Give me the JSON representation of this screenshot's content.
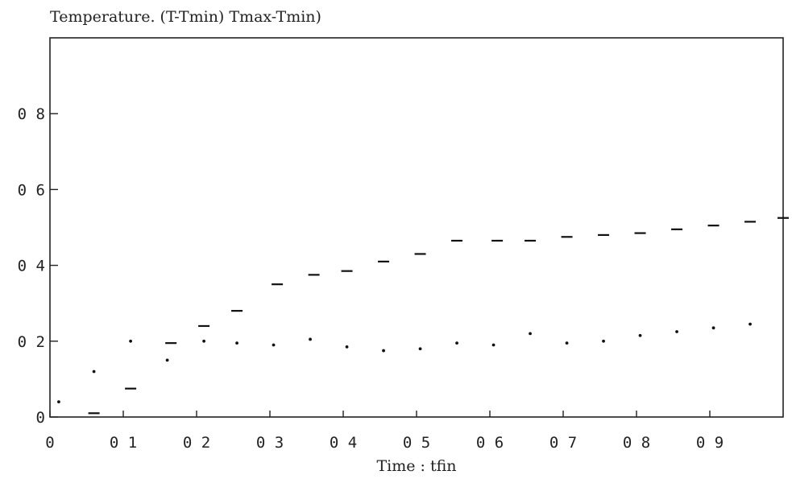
{
  "chart_data": {
    "type": "scatter",
    "title": "Temperature. (T-Tmin) Tmax-Tmin)",
    "xlabel": "Time : tfin",
    "ylabel": "",
    "xlim": [
      0,
      1
    ],
    "ylim": [
      0,
      1
    ],
    "grid": false,
    "legend": "none",
    "x_ticks": [
      {
        "value": 0,
        "label": "0"
      },
      {
        "value": 0.1,
        "label": "0 1"
      },
      {
        "value": 0.2,
        "label": "0 2"
      },
      {
        "value": 0.3,
        "label": "0 3"
      },
      {
        "value": 0.4,
        "label": "0 4"
      },
      {
        "value": 0.5,
        "label": "0 5"
      },
      {
        "value": 0.6,
        "label": "0 6"
      },
      {
        "value": 0.7,
        "label": "0 7"
      },
      {
        "value": 0.8,
        "label": "0 8"
      },
      {
        "value": 0.9,
        "label": "0 9"
      }
    ],
    "y_ticks": [
      {
        "value": 0,
        "label": "0"
      },
      {
        "value": 0.2,
        "label": "0 2"
      },
      {
        "value": 0.4,
        "label": "0 4"
      },
      {
        "value": 0.6,
        "label": "0 6"
      },
      {
        "value": 0.8,
        "label": "0 8"
      }
    ],
    "series": [
      {
        "marker": "dash",
        "x": [
          0.06,
          0.11,
          0.165,
          0.21,
          0.255,
          0.31,
          0.36,
          0.405,
          0.455,
          0.505,
          0.555,
          0.61,
          0.655,
          0.705,
          0.755,
          0.805,
          0.855,
          0.905,
          0.955,
          1.0
        ],
        "y": [
          0.01,
          0.075,
          0.195,
          0.24,
          0.28,
          0.35,
          0.375,
          0.385,
          0.41,
          0.43,
          0.465,
          0.465,
          0.465,
          0.475,
          0.48,
          0.485,
          0.495,
          0.505,
          0.515,
          0.525
        ]
      },
      {
        "marker": "dot",
        "x": [
          0.012,
          0.06,
          0.11,
          0.16,
          0.21,
          0.255,
          0.305,
          0.355,
          0.405,
          0.455,
          0.505,
          0.555,
          0.605,
          0.655,
          0.705,
          0.755,
          0.805,
          0.855,
          0.905,
          0.955
        ],
        "y": [
          0.04,
          0.12,
          0.2,
          0.15,
          0.2,
          0.195,
          0.19,
          0.205,
          0.185,
          0.175,
          0.18,
          0.195,
          0.19,
          0.22,
          0.195,
          0.2,
          0.215,
          0.225,
          0.235,
          0.245
        ]
      }
    ]
  }
}
